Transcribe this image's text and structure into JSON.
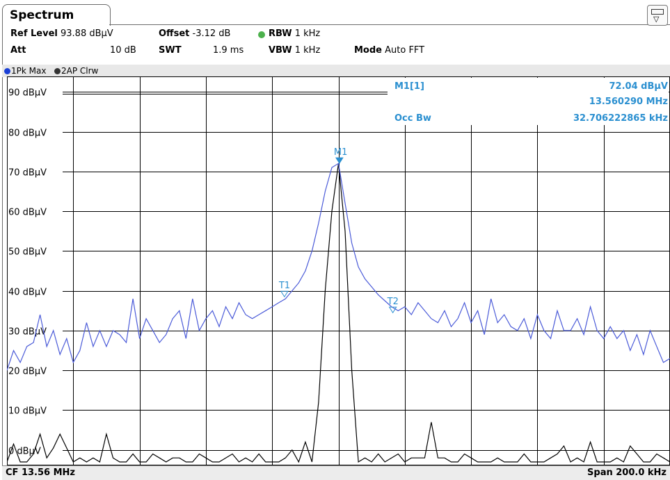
{
  "window": {
    "tab_title": "Spectrum"
  },
  "header": {
    "ref_level_label": "Ref Level",
    "ref_level_value": "93.88 dBµV",
    "offset_label": "Offset",
    "offset_value": "-3.12 dB",
    "rbw_label": "RBW",
    "rbw_value": "1 kHz",
    "att_label": "Att",
    "att_value": "10 dB",
    "swt_label": "SWT",
    "swt_value": "1.9 ms",
    "vbw_label": "VBW",
    "vbw_value": "1 kHz",
    "mode_label": "Mode",
    "mode_value": "Auto FFT"
  },
  "traces_bar": {
    "trace1": "1Pk Max",
    "trace2": "2AP Clrw",
    "trace1_color": "#1a3fd6",
    "trace2_color": "#333333"
  },
  "marker_info": {
    "marker_label": "M1[1]",
    "marker_level": "72.04 dBµV",
    "marker_freq": "13.560290 MHz",
    "occbw_label": "Occ Bw",
    "occbw_value": "32.706222865 kHz"
  },
  "footer": {
    "cf": "CF 13.56 MHz",
    "span": "Span 200.0 kHz"
  },
  "colors": {
    "trace1": "#4a5ad8",
    "trace2": "#000000",
    "marker": "#2a8fd0",
    "grid": "#000000"
  },
  "chart_data": {
    "type": "line",
    "title": "",
    "xlabel": "",
    "ylabel": "",
    "ylim": [
      -3.88,
      93.88
    ],
    "xlim": [
      13.46,
      13.66
    ],
    "x_unit": "MHz",
    "y_tick_labels": [
      "90 dBµV",
      "80 dBµV",
      "70 dBµV",
      "60 dBµV",
      "50 dBµV",
      "40 dBµV",
      "30 dBµV",
      "20 dBµV",
      "10 dBµV",
      "0 dBµV"
    ],
    "y_ticks": [
      90,
      80,
      70,
      60,
      50,
      40,
      30,
      20,
      10,
      0
    ],
    "x_divisions": 10,
    "grid": true,
    "markers": [
      {
        "label": "M1",
        "x": 13.56029,
        "y": 72.04
      },
      {
        "label": "T1",
        "x": 13.5437,
        "y": 38.5
      },
      {
        "label": "T2",
        "x": 13.5764,
        "y": 34.5
      }
    ],
    "series": [
      {
        "name": "1Pk Max",
        "x": [
          13.46,
          13.462,
          13.464,
          13.466,
          13.468,
          13.47,
          13.472,
          13.474,
          13.476,
          13.478,
          13.48,
          13.482,
          13.484,
          13.486,
          13.488,
          13.49,
          13.492,
          13.494,
          13.496,
          13.498,
          13.5,
          13.502,
          13.504,
          13.506,
          13.508,
          13.51,
          13.512,
          13.514,
          13.516,
          13.518,
          13.52,
          13.522,
          13.524,
          13.526,
          13.528,
          13.53,
          13.532,
          13.534,
          13.536,
          13.538,
          13.54,
          13.542,
          13.544,
          13.546,
          13.548,
          13.55,
          13.552,
          13.554,
          13.556,
          13.558,
          13.56,
          13.562,
          13.564,
          13.566,
          13.568,
          13.57,
          13.572,
          13.574,
          13.576,
          13.578,
          13.58,
          13.582,
          13.584,
          13.586,
          13.588,
          13.59,
          13.592,
          13.594,
          13.596,
          13.598,
          13.6,
          13.602,
          13.604,
          13.606,
          13.608,
          13.61,
          13.612,
          13.614,
          13.616,
          13.618,
          13.62,
          13.622,
          13.624,
          13.626,
          13.628,
          13.63,
          13.632,
          13.634,
          13.636,
          13.638,
          13.64,
          13.642,
          13.644,
          13.646,
          13.648,
          13.65,
          13.652,
          13.654,
          13.656,
          13.658,
          13.66
        ],
        "y": [
          20,
          25,
          22,
          26,
          27,
          34,
          26,
          30,
          24,
          28,
          22,
          25,
          32,
          26,
          30,
          26,
          30,
          29,
          27,
          38,
          28,
          33,
          30,
          27,
          29,
          33,
          35,
          28,
          38,
          30,
          33,
          35,
          31,
          36,
          33,
          37,
          34,
          33,
          34,
          35,
          36,
          37,
          38,
          40,
          42,
          45,
          50,
          57,
          65,
          71,
          72,
          62,
          52,
          46,
          43,
          41,
          39,
          37.5,
          36,
          35,
          36,
          34,
          37,
          35,
          33,
          32,
          35,
          31,
          33,
          37,
          32,
          35,
          29,
          38,
          32,
          34,
          31,
          30,
          33,
          28,
          34,
          30,
          28,
          35,
          30,
          30,
          33,
          29,
          36,
          30,
          28,
          31,
          28,
          30,
          25,
          29,
          24,
          30,
          26,
          22,
          23
        ]
      },
      {
        "name": "2AP Clrw",
        "x": [
          13.46,
          13.462,
          13.464,
          13.466,
          13.468,
          13.47,
          13.472,
          13.474,
          13.476,
          13.478,
          13.48,
          13.482,
          13.484,
          13.486,
          13.488,
          13.49,
          13.492,
          13.494,
          13.496,
          13.498,
          13.5,
          13.502,
          13.504,
          13.506,
          13.508,
          13.51,
          13.512,
          13.514,
          13.516,
          13.518,
          13.52,
          13.522,
          13.524,
          13.526,
          13.528,
          13.53,
          13.532,
          13.534,
          13.536,
          13.538,
          13.54,
          13.542,
          13.544,
          13.546,
          13.548,
          13.55,
          13.552,
          13.554,
          13.556,
          13.558,
          13.56,
          13.562,
          13.564,
          13.566,
          13.568,
          13.57,
          13.572,
          13.574,
          13.576,
          13.578,
          13.58,
          13.582,
          13.584,
          13.586,
          13.588,
          13.59,
          13.592,
          13.594,
          13.596,
          13.598,
          13.6,
          13.602,
          13.604,
          13.606,
          13.608,
          13.61,
          13.612,
          13.614,
          13.616,
          13.618,
          13.62,
          13.622,
          13.624,
          13.626,
          13.628,
          13.63,
          13.632,
          13.634,
          13.636,
          13.638,
          13.64,
          13.642,
          13.644,
          13.646,
          13.648,
          13.65,
          13.652,
          13.654,
          13.656,
          13.658,
          13.66
        ],
        "y": [
          -3,
          1.5,
          -3,
          -3,
          -1,
          4,
          -2,
          0.5,
          4,
          0.5,
          -3,
          -2,
          -3,
          -2,
          -3,
          4,
          -2,
          -3,
          -3,
          -1,
          -3,
          -3,
          -1,
          -2,
          -3,
          -2,
          -2,
          -3,
          -3,
          -1,
          -2,
          -3,
          -3,
          -2,
          -1,
          -3,
          -2,
          -3,
          -1,
          -3,
          -3,
          -3,
          -2,
          0,
          -3,
          2,
          -3,
          12,
          40,
          60,
          72,
          55,
          20,
          -3,
          -2,
          -3,
          -1,
          -3,
          -2,
          -1,
          -3,
          -2,
          -2,
          -2,
          7,
          -2,
          -2,
          -3,
          -3,
          -1,
          -2,
          -3,
          -3,
          -3,
          -2,
          -3,
          -3,
          -3,
          -1,
          -3,
          -3,
          -3,
          -2,
          -1,
          1,
          -3,
          -2,
          -3,
          2,
          -3,
          -3,
          -3,
          -2,
          -3,
          1,
          -1,
          -3,
          -3,
          -1,
          -2,
          -3
        ]
      }
    ]
  }
}
